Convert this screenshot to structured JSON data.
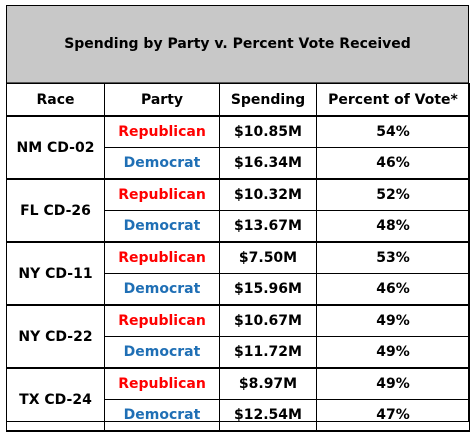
{
  "title": "Spending by Party v. Percent Vote Received",
  "headers": [
    "Race",
    "Party",
    "Spending",
    "Percent of Vote*"
  ],
  "colors": {
    "republican": "#ff0000",
    "democrat": "#1f6fb5",
    "title_bg": "#c8c8c8"
  },
  "races": [
    {
      "race": "NM CD-02",
      "rows": [
        {
          "party": "Republican",
          "spending": "$10.85M",
          "percent": "54%"
        },
        {
          "party": "Democrat",
          "spending": "$16.34M",
          "percent": "46%"
        }
      ]
    },
    {
      "race": "FL CD-26",
      "rows": [
        {
          "party": "Republican",
          "spending": "$10.32M",
          "percent": "52%"
        },
        {
          "party": "Democrat",
          "spending": "$13.67M",
          "percent": "48%"
        }
      ]
    },
    {
      "race": "NY CD-11",
      "rows": [
        {
          "party": "Republican",
          "spending": "$7.50M",
          "percent": "53%"
        },
        {
          "party": "Democrat",
          "spending": "$15.96M",
          "percent": "46%"
        }
      ]
    },
    {
      "race": "NY CD-22",
      "rows": [
        {
          "party": "Republican",
          "spending": "$10.67M",
          "percent": "49%"
        },
        {
          "party": "Democrat",
          "spending": "$11.72M",
          "percent": "49%"
        }
      ]
    },
    {
      "race": "TX CD-24",
      "rows": [
        {
          "party": "Republican",
          "spending": "$8.97M",
          "percent": "49%"
        },
        {
          "party": "Democrat",
          "spending": "$12.54M",
          "percent": "47%"
        }
      ]
    }
  ]
}
